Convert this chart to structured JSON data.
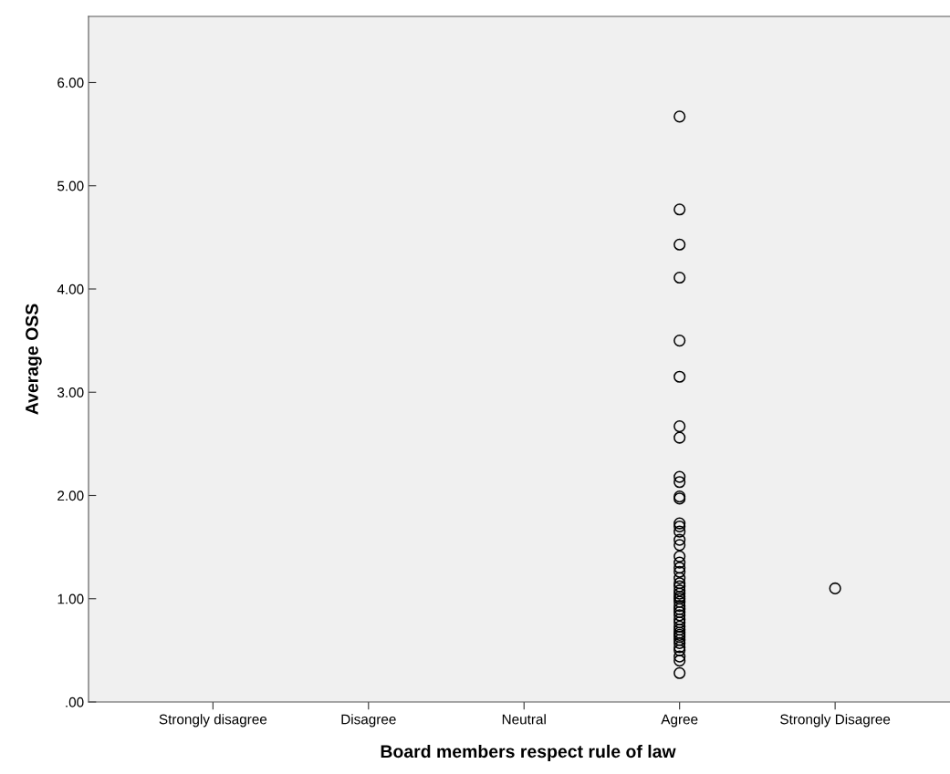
{
  "chart_data": {
    "type": "scatter",
    "xlabel": "Board members respect rule of law",
    "ylabel": "Average OSS",
    "categories": [
      "Strongly disagree",
      "Disagree",
      "Neutral",
      "Agree",
      "Strongly Disagree"
    ],
    "series": [
      {
        "color": "#000000",
        "x": [
          "Agree",
          "Agree",
          "Agree",
          "Agree",
          "Agree",
          "Agree",
          "Agree",
          "Agree",
          "Agree",
          "Agree",
          "Agree",
          "Agree",
          "Agree",
          "Agree",
          "Agree",
          "Agree",
          "Agree",
          "Agree",
          "Agree",
          "Agree",
          "Agree",
          "Agree",
          "Agree",
          "Agree",
          "Agree",
          "Agree",
          "Agree",
          "Agree",
          "Agree",
          "Agree",
          "Agree",
          "Agree",
          "Agree",
          "Agree",
          "Agree",
          "Agree",
          "Agree",
          "Agree",
          "Agree",
          "Agree",
          "Agree",
          "Agree",
          "Agree",
          "Agree",
          "Agree",
          "Agree",
          "Agree",
          "Strongly Disagree"
        ],
        "values": [
          5.67,
          4.77,
          4.43,
          4.11,
          3.5,
          3.15,
          2.67,
          2.56,
          2.18,
          2.13,
          1.99,
          1.97,
          1.73,
          1.7,
          1.65,
          1.57,
          1.52,
          1.41,
          1.35,
          1.3,
          1.26,
          1.2,
          1.15,
          1.12,
          1.08,
          1.05,
          1.02,
          1.0,
          0.97,
          0.93,
          0.9,
          0.87,
          0.84,
          0.8,
          0.77,
          0.73,
          0.7,
          0.67,
          0.63,
          0.6,
          0.57,
          0.53,
          0.5,
          0.44,
          0.4,
          0.28,
          0.65,
          1.1
        ]
      }
    ],
    "marker": "circle",
    "grid": false,
    "ylim": [
      0,
      6.64
    ],
    "yticks": [
      {
        "value": 0,
        "label": ".00"
      },
      {
        "value": 1,
        "label": "1.00"
      },
      {
        "value": 2,
        "label": "2.00"
      },
      {
        "value": 3,
        "label": "3.00"
      },
      {
        "value": 4,
        "label": "4.00"
      },
      {
        "value": 5,
        "label": "5.00"
      },
      {
        "value": 6,
        "label": "6.00"
      }
    ]
  }
}
